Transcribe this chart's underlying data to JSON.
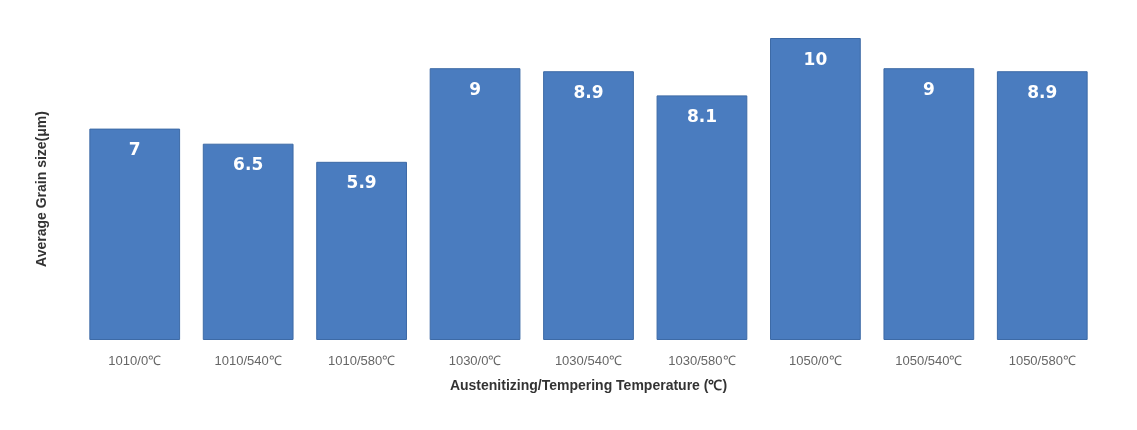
{
  "chart_data": {
    "type": "bar",
    "xlabel": "Austenitizing/Tempering Temperature (℃)",
    "ylabel": "Average Grain size(μm)",
    "categories": [
      "1010/0℃",
      "1010/540℃",
      "1010/580℃",
      "1030/0℃",
      "1030/540℃",
      "1030/580℃",
      "1050/0℃",
      "1050/540℃",
      "1050/580℃"
    ],
    "values": [
      7,
      6.5,
      5.9,
      9,
      8.9,
      8.1,
      10,
      9,
      8.9
    ],
    "color": "#4a7cbf",
    "data_labels": true
  }
}
